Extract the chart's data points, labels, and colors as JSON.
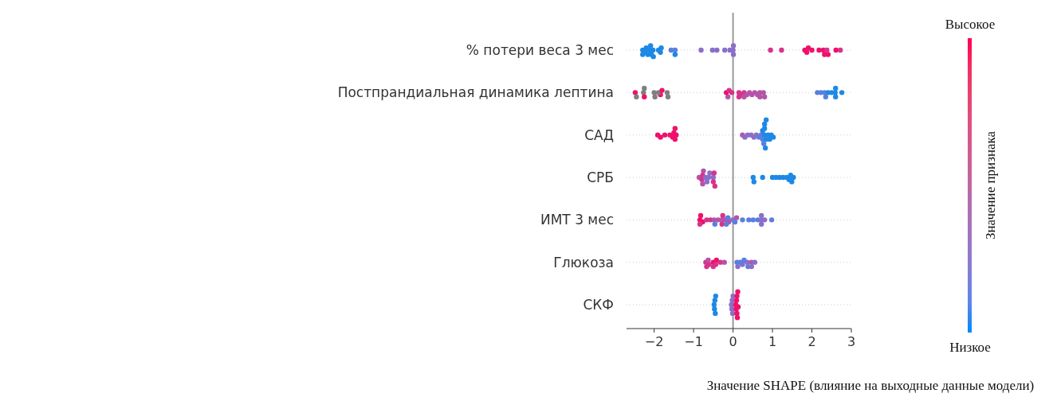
{
  "chart_data": {
    "type": "scatter",
    "orientation": "horizontal",
    "categories": [
      "% потери веса 3 мес",
      "Постпрандиальная динамика лептина",
      "САД",
      "СРБ",
      "ИМТ 3 мес",
      "Глюкоза",
      "СКФ"
    ],
    "xlabel": "Значение SHAPE  (влияние на выходные данные модели)",
    "clabel": "Значение признака",
    "annotations": [
      "Высокое",
      "Низкое"
    ],
    "xlim": [
      -2.7,
      3.0
    ],
    "xticks": [
      -2,
      -1,
      0,
      1,
      2,
      3
    ],
    "grid": "y",
    "marker": "circle",
    "ref_lines": [
      {
        "axis": "x",
        "value": 0,
        "color": "#999999"
      }
    ],
    "series": [
      {
        "x": [
          "% потери веса 3 мес",
          "% потери веса 3 мес",
          "% потери веса 3 мес",
          "% потери веса 3 мес",
          "% потери веса 3 мес",
          "% потери веса 3 мес",
          "% потери веса 3 мес",
          "% потери веса 3 мес",
          "% потери веса 3 мес",
          "% потери веса 3 мес",
          "% потери веса 3 мес",
          "% потери веса 3 мес",
          "% потери веса 3 мес",
          "% потери веса 3 мес",
          "% потери веса 3 мес",
          "% потери веса 3 мес",
          "% потери веса 3 мес",
          "% потери веса 3 мес",
          "% потери веса 3 мес",
          "% потери веса 3 мес",
          "% потери веса 3 мес",
          "% потери веса 3 мес",
          "% потери веса 3 мес",
          "% потери веса 3 мес",
          "% потери веса 3 мес",
          "% потери веса 3 мес",
          "% потери веса 3 мес",
          "% потери веса 3 мес",
          "% потери веса 3 мес",
          "% потери веса 3 мес",
          "% потери веса 3 мес",
          "% потери веса 3 мес",
          "% потери веса 3 мес",
          "% потери веса 3 мес",
          "% потери веса 3 мес",
          "% потери веса 3 мес",
          "% потери веса 3 мес"
        ],
        "values": [
          -2.29,
          -2.2,
          -2.11,
          -2.03,
          -1.84,
          -1.47,
          -2.29,
          -2.22,
          -2.16,
          -2.09,
          -2.02,
          -1.89,
          -1.57,
          -1.47,
          -2.07,
          -1.82,
          -0.81,
          -0.52,
          -0.41,
          -0.21,
          -0.08,
          0.01,
          0.01,
          0.0,
          0.95,
          1.23,
          1.87,
          2.32,
          2.41,
          1.82,
          1.91,
          2.0,
          2.18,
          2.29,
          2.38,
          2.61,
          2.72
        ],
        "colors": [
          "#1e88e5",
          "#1e88e5",
          "#1e88e5",
          "#1e88e5",
          "#1e88e5",
          "#5a7fe0",
          "#1e88e5",
          "#1e88e5",
          "#1e88e5",
          "#1e88e5",
          "#1e88e5",
          "#1e88e5",
          "#5a7fe0",
          "#1e88e5",
          "#1e88e5",
          "#1e88e5",
          "#8a6fc9",
          "#8a6fc9",
          "#8a6fc9",
          "#8a6fc9",
          "#8a6fc9",
          "#8a6fc9",
          "#8a6fc9",
          "#8a6fc9",
          "#d8338a",
          "#d8338a",
          "#f0106a",
          "#f0106a",
          "#f0106a",
          "#f0106a",
          "#f0106a",
          "#f0106a",
          "#f0106a",
          "#f0106a",
          "#d8338a",
          "#f0106a",
          "#d8338a"
        ]
      },
      {
        "x": [
          "Постпрандиальная динамика лептина",
          "Постпрандиальная динамика лептина",
          "Постпрандиальная динамика лептина",
          "Постпрандиальная динамика лептина",
          "Постпрандиальная динамика лептина",
          "Постпрандиальная динамика лептина",
          "Постпрандиальная динамика лептина",
          "Постпрандиальная динамика лептина",
          "Постпрандиальная динамика лептина",
          "Постпрандиальная динамика лептина",
          "Постпрандиальная динамика лептина",
          "Постпрандиальная динамика лептина",
          "Постпрандиальная динамика лептина",
          "Постпрандиальная динамика лептина",
          "Постпрандиальная динамика лептина",
          "Постпрандиальная динамика лептина",
          "Постпрандиальная динамика лептина",
          "Постпрандиальная динамика лептина",
          "Постпрандиальная динамика лептина",
          "Постпрандиальная динамика лептина",
          "Постпрандиальная динамика лептина",
          "Постпрандиальная динамика лептина",
          "Постпрандиальная динамика лептина",
          "Постпрандиальная динамика лептина",
          "Постпрандиальная динамика лептина",
          "Постпрандиальная динамика лептина",
          "Постпрандиальная динамика лептина",
          "Постпрандиальная динамика лептина",
          "Постпрандиальная динамика лептина",
          "Постпрандиальная динамика лептина",
          "Постпрандиальная динамика лептина",
          "Постпрандиальная динамика лептина",
          "Постпрандиальная динамика лептина",
          "Постпрандиальная динамика лептина",
          "Постпрандиальная динамика лептина",
          "Постпрандиальная динамика лептина",
          "Постпрандиальная динамика лептина",
          "Постпрандиальная динамика лептина",
          "Постпрандиальная динамика лептина",
          "Постпрандиальная динамика лептина"
        ],
        "values": [
          -2.48,
          -2.27,
          -1.98,
          -1.84,
          -1.65,
          -2.45,
          -2.25,
          -2.0,
          -1.89,
          -1.8,
          -1.67,
          -2.25,
          -0.13,
          0.15,
          0.28,
          0.68,
          0.77,
          -0.17,
          -0.1,
          -0.03,
          0.15,
          0.21,
          0.28,
          0.35,
          0.42,
          0.48,
          0.55,
          0.62,
          0.68,
          0.8,
          2.35,
          2.6,
          2.14,
          2.23,
          2.32,
          2.41,
          2.5,
          2.59,
          2.76,
          2.6
        ],
        "colors": [
          "#f0106a",
          "#7f7f7f",
          "#7f7f7f",
          "#f0106a",
          "#7f7f7f",
          "#7f7f7f",
          "#f0106a",
          "#7f7f7f",
          "#7f7f7f",
          "#f0106a",
          "#7f7f7f",
          "#7f7f7f",
          "#b454a8",
          "#d8338a",
          "#d8338a",
          "#b454a8",
          "#b454a8",
          "#f0106a",
          "#d8338a",
          "#d8338a",
          "#d8338a",
          "#d8338a",
          "#b454a8",
          "#b454a8",
          "#b454a8",
          "#b454a8",
          "#b454a8",
          "#b454a8",
          "#b454a8",
          "#b454a8",
          "#5a7fe0",
          "#1e88e5",
          "#5a7fe0",
          "#5a7fe0",
          "#5a7fe0",
          "#1e88e5",
          "#1e88e5",
          "#1e88e5",
          "#1e88e5",
          "#1e88e5"
        ]
      },
      {
        "x": [
          "САД",
          "САД",
          "САД",
          "САД",
          "САД",
          "САД",
          "САД",
          "САД",
          "САД",
          "САД",
          "САД",
          "САД",
          "САД",
          "САД",
          "САД",
          "САД",
          "САД",
          "САД",
          "САД",
          "САД",
          "САД",
          "САД",
          "САД",
          "САД",
          "САД",
          "САД",
          "САД",
          "САД",
          "САД",
          "САД"
        ],
        "values": [
          -1.91,
          -1.84,
          -1.73,
          -1.6,
          -1.53,
          -1.47,
          -1.44,
          -1.5,
          -1.47,
          0.24,
          0.3,
          0.37,
          0.46,
          0.53,
          0.59,
          0.66,
          0.71,
          0.75,
          0.8,
          0.84,
          0.89,
          0.93,
          0.97,
          1.02,
          0.75,
          0.8,
          0.8,
          0.84,
          0.78,
          0.82
        ],
        "colors": [
          "#f0106a",
          "#f0106a",
          "#f0106a",
          "#f0106a",
          "#f0106a",
          "#f0106a",
          "#f0106a",
          "#f0106a",
          "#f0106a",
          "#b454a8",
          "#8a6fc9",
          "#8a6fc9",
          "#8a6fc9",
          "#8a6fc9",
          "#8a6fc9",
          "#5a7fe0",
          "#5a7fe0",
          "#5a7fe0",
          "#1e88e5",
          "#1e88e5",
          "#1e88e5",
          "#1e88e5",
          "#1e88e5",
          "#1e88e5",
          "#1e88e5",
          "#1e88e5",
          "#1e88e5",
          "#1e88e5",
          "#5a7fe0",
          "#1e88e5"
        ]
      },
      {
        "x": [
          "СРБ",
          "СРБ",
          "СРБ",
          "СРБ",
          "СРБ",
          "СРБ",
          "СРБ",
          "СРБ",
          "СРБ",
          "СРБ",
          "СРБ",
          "СРБ",
          "СРБ",
          "СРБ",
          "СРБ",
          "СРБ",
          "СРБ",
          "СРБ",
          "СРБ",
          "СРБ",
          "СРБ",
          "СРБ",
          "СРБ",
          "СРБ",
          "СРБ",
          "СРБ"
        ],
        "values": [
          -0.86,
          -0.79,
          null,
          -0.66,
          -0.59,
          -0.5,
          -0.46,
          -0.77,
          -0.5,
          -0.77,
          -0.48,
          -0.75,
          -0.7,
          -0.62,
          0.51,
          0.53,
          0.75,
          1.0,
          1.09,
          1.18,
          1.27,
          1.36,
          1.42,
          1.49,
          1.53,
          1.46
        ],
        "colors": [
          "#b454a8",
          "#d8338a",
          null,
          "#8a6fc9",
          "#8a6fc9",
          "#8a6fc9",
          "#d8338a",
          "#d8338a",
          "#d8338a",
          "#b454a8",
          "#d8338a",
          "#b454a8",
          "#8a6fc9",
          "#8a6fc9",
          "#1e88e5",
          "#1e88e5",
          "#1e88e5",
          "#1e88e5",
          "#1e88e5",
          "#1e88e5",
          "#1e88e5",
          "#1e88e5",
          "#1e88e5",
          "#1e88e5",
          "#1e88e5",
          "#1e88e5"
        ]
      },
      {
        "x": [
          "ИМТ 3 мес",
          "ИМТ 3 мес",
          "ИМТ 3 мес",
          "ИМТ 3 мес",
          "ИМТ 3 мес",
          "ИМТ 3 мес",
          "ИМТ 3 мес",
          "ИМТ 3 мес",
          "ИМТ 3 мес",
          "ИМТ 3 мес",
          "ИМТ 3 мес",
          "ИМТ 3 мес",
          "ИМТ 3 мес",
          "ИМТ 3 мес",
          "ИМТ 3 мес",
          "ИМТ 3 мес",
          "ИМТ 3 мес",
          "ИМТ 3 мес",
          "ИМТ 3 мес",
          "ИМТ 3 мес",
          "ИМТ 3 мес",
          "ИМТ 3 мес",
          "ИМТ 3 мес",
          "ИМТ 3 мес",
          "ИМТ 3 мес",
          "ИМТ 3 мес",
          "ИМТ 3 мес",
          "ИМТ 3 мес"
        ],
        "values": [
          -0.84,
          -0.77,
          -0.67,
          -0.57,
          -0.48,
          -0.38,
          -0.28,
          -0.19,
          -0.11,
          -0.01,
          0.09,
          0.24,
          0.4,
          0.51,
          0.63,
          0.71,
          0.8,
          0.98,
          -0.84,
          -0.46,
          -0.28,
          -0.17,
          -0.13,
          0.05,
          0.72,
          -0.82,
          -0.26,
          0.72
        ],
        "colors": [
          "#f0106a",
          "#f0106a",
          "#d8338a",
          "#d8338a",
          "#b454a8",
          "#b454a8",
          "#b454a8",
          "#b454a8",
          "#b454a8",
          "#8a6fc9",
          "#b454a8",
          "#5a7fe0",
          "#5a7fe0",
          "#5a7fe0",
          "#5a7fe0",
          "#8a6fc9",
          "#8a6fc9",
          "#5a7fe0",
          "#d8338a",
          "#5a7fe0",
          "#d8338a",
          "#5a7fe0",
          "#5a7fe0",
          "#5a7fe0",
          "#8a6fc9",
          "#f0106a",
          "#d8338a",
          "#8a6fc9"
        ]
      },
      {
        "x": [
          "Глюкоза",
          "Глюкоза",
          "Глюкоза",
          "Глюкоза",
          "Глюкоза",
          "Глюкоза",
          "Глюкоза",
          "Глюкоза",
          "Глюкоза",
          "Глюкоза",
          "Глюкоза",
          "Глюкоза",
          "Глюкоза",
          "Глюкоза",
          "Глюкоза",
          "Глюкоза",
          "Глюкоза",
          "Глюкоза",
          "Глюкоза",
          "Глюкоза",
          "Глюкоза"
        ],
        "values": [
          -0.67,
          null,
          -0.69,
          -0.61,
          -0.5,
          -0.42,
          -0.32,
          -0.22,
          -0.44,
          -0.63,
          -0.5,
          0.12,
          0.24,
          0.36,
          0.47,
          0.1,
          0.18,
          0.28,
          0.38,
          0.47,
          0.55
        ],
        "colors": [
          "#d8338a",
          null,
          "#d8338a",
          "#d8338a",
          "#f0106a",
          "#f0106a",
          "#d8338a",
          "#b454a8",
          "#d8338a",
          "#b454a8",
          "#d8338a",
          "#8a6fc9",
          "#8a6fc9",
          "#8a6fc9",
          "#b454a8",
          "#5a7fe0",
          "#5a7fe0",
          "#5a7fe0",
          "#5a7fe0",
          "#8a6fc9",
          "#8a6fc9"
        ]
      },
      {
        "x": [
          "СКФ",
          "СКФ",
          "СКФ",
          "СКФ",
          "СКФ",
          "СКФ",
          "СКФ",
          "СКФ",
          "СКФ",
          "СКФ",
          "СКФ",
          "СКФ",
          "СКФ",
          "СКФ",
          "СКФ",
          "СКФ",
          "СКФ",
          "СКФ",
          "СКФ"
        ],
        "values": [
          -0.48,
          -0.46,
          -0.44,
          -0.47,
          -0.45,
          -0.04,
          -0.02,
          0,
          null,
          -0.03,
          -0.01,
          0.07,
          0.08,
          0.09,
          0.1,
          0.11,
          0.12,
          0.13,
          0.1
        ],
        "colors": [
          "#1e88e5",
          "#1e88e5",
          "#1e88e5",
          "#1e88e5",
          "#1e88e5",
          "#8a6fc9",
          "#8a6fc9",
          "#8a6fc9",
          null,
          "#8a6fc9",
          "#8a6fc9",
          "#f0106a",
          "#f0106a",
          "#f0106a",
          "#f0106a",
          "#f0106a",
          "#f0106a",
          "#f0106a",
          "#f0106a"
        ]
      }
    ]
  }
}
